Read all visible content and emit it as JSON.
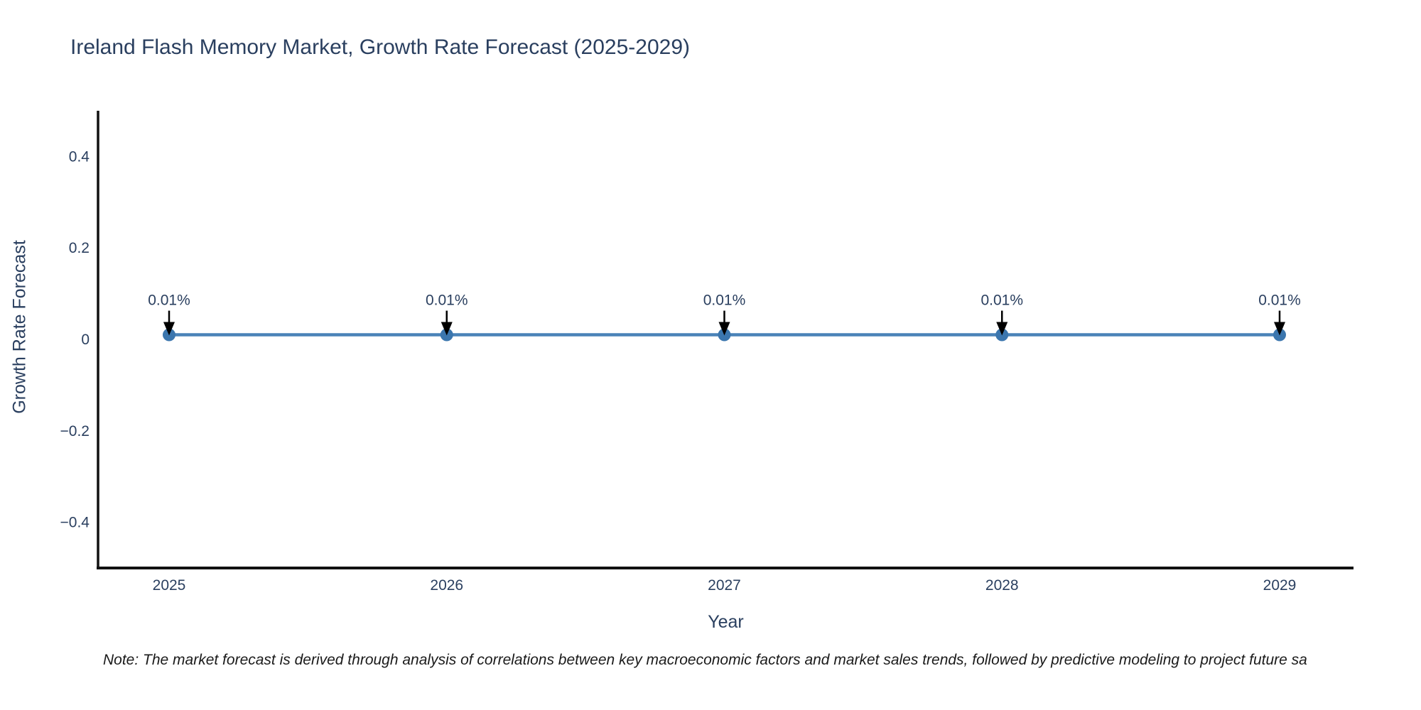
{
  "chart_data": {
    "type": "line",
    "title": "Ireland Flash Memory Market, Growth Rate Forecast (2025-2029)",
    "xlabel": "Year",
    "ylabel": "Growth Rate Forecast",
    "x": [
      2025,
      2026,
      2027,
      2028,
      2029
    ],
    "y": [
      0.01,
      0.01,
      0.01,
      0.01,
      0.01
    ],
    "point_labels": [
      "0.01%",
      "0.01%",
      "0.01%",
      "0.01%",
      "0.01%"
    ],
    "xtick_labels": [
      "2025",
      "2026",
      "2027",
      "2028",
      "2029"
    ],
    "ytick_values": [
      0.4,
      0.2,
      0,
      -0.2,
      -0.4
    ],
    "ytick_labels": [
      "0.4",
      "0.2",
      "0",
      "−0.2",
      "−0.4"
    ],
    "ylim": [
      -0.5,
      0.5
    ],
    "grid": false,
    "legend_position": "none",
    "line_color": "#4a83b8",
    "marker_color": "#3b76ae",
    "arrow_color": "#000000",
    "axis_color": "#111111",
    "text_color": "#2a3f5f"
  },
  "note": {
    "text": "Note: The market forecast is derived through analysis of correlations between key macroeconomic factors and market sales trends, followed by predictive modeling to project future sa"
  }
}
